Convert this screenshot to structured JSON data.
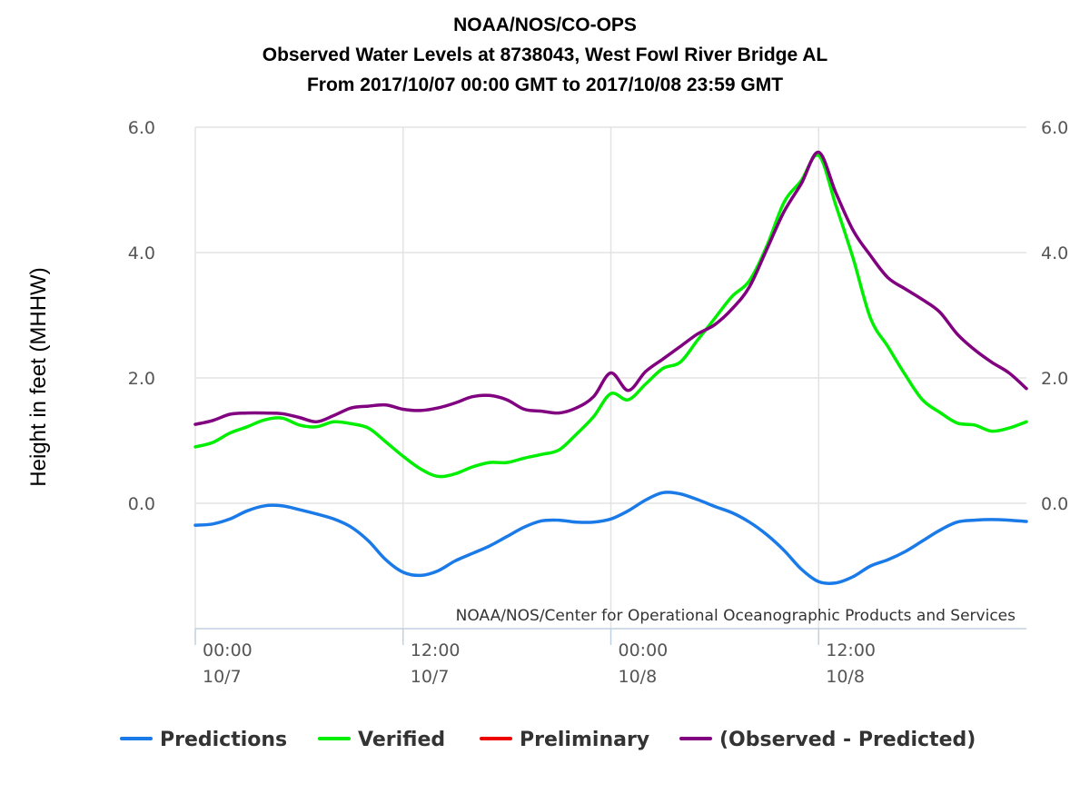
{
  "chart_data": {
    "type": "line",
    "title": [
      "NOAA/NOS/CO-OPS",
      "Observed Water Levels at 8738043, West Fowl River Bridge AL",
      "From 2017/10/07 00:00 GMT to 2017/10/08 23:59 GMT"
    ],
    "ylabel": "Height in feet (MHHW)",
    "credit": "NOAA/NOS/Center for Operational Oceanographic Products and Services",
    "ylim": [
      -2.0,
      6.0
    ],
    "xlim": [
      0,
      48
    ],
    "y_ticks": [
      "6.0",
      "4.0",
      "2.0",
      "0.0"
    ],
    "y_tick_values": [
      6.0,
      4.0,
      2.0,
      0.0
    ],
    "x_ticks": [
      {
        "time": "00:00",
        "date": "10/7",
        "hour": 0
      },
      {
        "time": "12:00",
        "date": "10/7",
        "hour": 12
      },
      {
        "time": "00:00",
        "date": "10/8",
        "hour": 24
      },
      {
        "time": "12:00",
        "date": "10/8",
        "hour": 36
      }
    ],
    "grid": true,
    "legend_position": "bottom",
    "series": [
      {
        "name": "Predictions",
        "color": "#1a7ae8",
        "points": [
          [
            0,
            -0.35
          ],
          [
            1,
            -0.33
          ],
          [
            2,
            -0.25
          ],
          [
            3,
            -0.12
          ],
          [
            4,
            -0.04
          ],
          [
            5,
            -0.04
          ],
          [
            6,
            -0.1
          ],
          [
            7,
            -0.17
          ],
          [
            8,
            -0.25
          ],
          [
            9,
            -0.38
          ],
          [
            10,
            -0.6
          ],
          [
            11,
            -0.9
          ],
          [
            12,
            -1.1
          ],
          [
            13,
            -1.15
          ],
          [
            14,
            -1.08
          ],
          [
            15,
            -0.92
          ],
          [
            16,
            -0.8
          ],
          [
            17,
            -0.68
          ],
          [
            18,
            -0.53
          ],
          [
            19,
            -0.38
          ],
          [
            20,
            -0.28
          ],
          [
            21,
            -0.27
          ],
          [
            22,
            -0.3
          ],
          [
            23,
            -0.3
          ],
          [
            24,
            -0.25
          ],
          [
            25,
            -0.12
          ],
          [
            26,
            0.05
          ],
          [
            27,
            0.17
          ],
          [
            28,
            0.15
          ],
          [
            29,
            0.06
          ],
          [
            30,
            -0.05
          ],
          [
            31,
            -0.15
          ],
          [
            32,
            -0.3
          ],
          [
            33,
            -0.5
          ],
          [
            34,
            -0.75
          ],
          [
            35,
            -1.05
          ],
          [
            36,
            -1.25
          ],
          [
            37,
            -1.27
          ],
          [
            38,
            -1.17
          ],
          [
            39,
            -1.0
          ],
          [
            40,
            -0.9
          ],
          [
            41,
            -0.77
          ],
          [
            42,
            -0.6
          ],
          [
            43,
            -0.43
          ],
          [
            44,
            -0.3
          ],
          [
            45,
            -0.27
          ],
          [
            46,
            -0.26
          ],
          [
            47,
            -0.27
          ],
          [
            48,
            -0.29
          ]
        ]
      },
      {
        "name": "Verified",
        "color": "#00ee00",
        "points": [
          [
            0,
            0.9
          ],
          [
            1,
            0.97
          ],
          [
            2,
            1.12
          ],
          [
            3,
            1.22
          ],
          [
            4,
            1.33
          ],
          [
            5,
            1.36
          ],
          [
            6,
            1.25
          ],
          [
            7,
            1.22
          ],
          [
            8,
            1.3
          ],
          [
            9,
            1.27
          ],
          [
            10,
            1.2
          ],
          [
            11,
            0.98
          ],
          [
            12,
            0.75
          ],
          [
            13,
            0.55
          ],
          [
            14,
            0.43
          ],
          [
            15,
            0.47
          ],
          [
            16,
            0.58
          ],
          [
            17,
            0.65
          ],
          [
            18,
            0.65
          ],
          [
            19,
            0.72
          ],
          [
            20,
            0.78
          ],
          [
            21,
            0.85
          ],
          [
            22,
            1.1
          ],
          [
            23,
            1.38
          ],
          [
            24,
            1.75
          ],
          [
            25,
            1.65
          ],
          [
            26,
            1.9
          ],
          [
            27,
            2.15
          ],
          [
            28,
            2.25
          ],
          [
            29,
            2.6
          ],
          [
            30,
            2.95
          ],
          [
            31,
            3.3
          ],
          [
            32,
            3.55
          ],
          [
            33,
            4.1
          ],
          [
            34,
            4.8
          ],
          [
            35,
            5.15
          ],
          [
            36,
            5.55
          ],
          [
            37,
            4.75
          ],
          [
            38,
            3.9
          ],
          [
            39,
            2.95
          ],
          [
            40,
            2.5
          ],
          [
            41,
            2.05
          ],
          [
            42,
            1.65
          ],
          [
            43,
            1.45
          ],
          [
            44,
            1.28
          ],
          [
            45,
            1.25
          ],
          [
            46,
            1.15
          ],
          [
            47,
            1.2
          ],
          [
            48,
            1.3
          ]
        ]
      },
      {
        "name": "Preliminary",
        "color": "#ee0000",
        "points": []
      },
      {
        "name": "(Observed - Predicted)",
        "color": "#800080",
        "points": [
          [
            0,
            1.26
          ],
          [
            1,
            1.32
          ],
          [
            2,
            1.42
          ],
          [
            3,
            1.44
          ],
          [
            4,
            1.44
          ],
          [
            5,
            1.43
          ],
          [
            6,
            1.37
          ],
          [
            7,
            1.3
          ],
          [
            8,
            1.4
          ],
          [
            9,
            1.52
          ],
          [
            10,
            1.55
          ],
          [
            11,
            1.57
          ],
          [
            12,
            1.5
          ],
          [
            13,
            1.48
          ],
          [
            14,
            1.52
          ],
          [
            15,
            1.6
          ],
          [
            16,
            1.7
          ],
          [
            17,
            1.72
          ],
          [
            18,
            1.65
          ],
          [
            19,
            1.5
          ],
          [
            20,
            1.47
          ],
          [
            21,
            1.44
          ],
          [
            22,
            1.52
          ],
          [
            23,
            1.7
          ],
          [
            24,
            2.08
          ],
          [
            25,
            1.8
          ],
          [
            26,
            2.1
          ],
          [
            27,
            2.3
          ],
          [
            28,
            2.5
          ],
          [
            29,
            2.7
          ],
          [
            30,
            2.85
          ],
          [
            31,
            3.1
          ],
          [
            32,
            3.45
          ],
          [
            33,
            4.05
          ],
          [
            34,
            4.65
          ],
          [
            35,
            5.1
          ],
          [
            36,
            5.6
          ],
          [
            37,
            4.95
          ],
          [
            38,
            4.35
          ],
          [
            39,
            3.95
          ],
          [
            40,
            3.6
          ],
          [
            41,
            3.42
          ],
          [
            42,
            3.25
          ],
          [
            43,
            3.05
          ],
          [
            44,
            2.7
          ],
          [
            45,
            2.45
          ],
          [
            46,
            2.25
          ],
          [
            47,
            2.08
          ],
          [
            48,
            1.83
          ]
        ]
      }
    ]
  }
}
